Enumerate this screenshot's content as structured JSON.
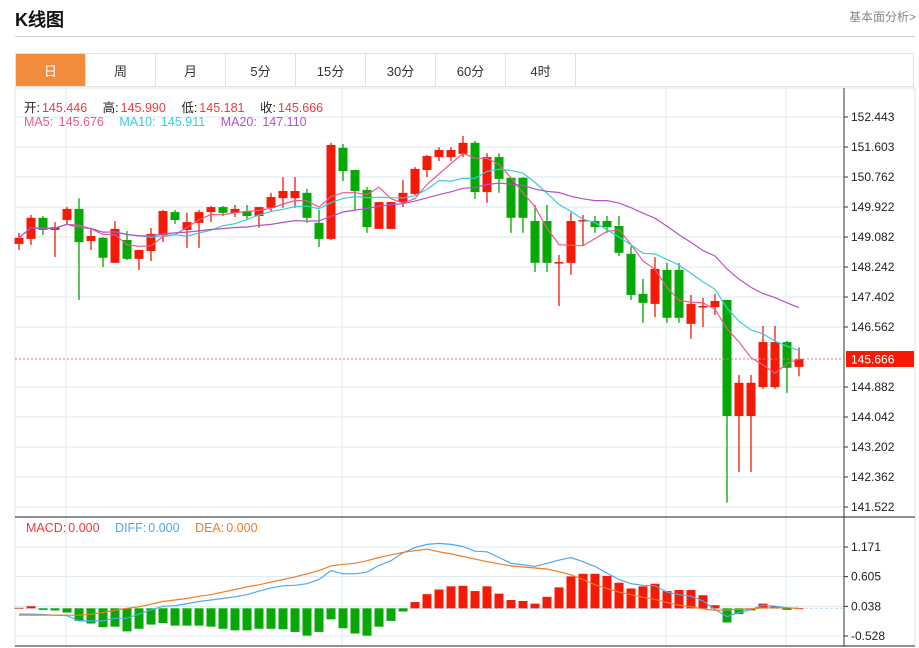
{
  "header": {
    "title": "K线图",
    "link": "基本面分析>"
  },
  "tabs": [
    {
      "label": "日",
      "active": true
    },
    {
      "label": "周"
    },
    {
      "label": "月"
    },
    {
      "label": "5分"
    },
    {
      "label": "15分"
    },
    {
      "label": "30分"
    },
    {
      "label": "60分"
    },
    {
      "label": "4时"
    }
  ],
  "ohlc_legend": {
    "open_label": "开:",
    "open": "145.446",
    "high_label": "高:",
    "high": "145.990",
    "low_label": "低:",
    "low": "145.181",
    "close_label": "收:",
    "close": "145.666"
  },
  "ma_legend": {
    "ma5_label": "MA5:",
    "ma5": "145.676",
    "ma10_label": "MA10:",
    "ma10": "145.911",
    "ma20_label": "MA20:",
    "ma20": "147.110"
  },
  "macd_legend": {
    "macd_label": "MACD:",
    "macd": "0.000",
    "diff_label": "DIFF:",
    "diff": "0.000",
    "dea_label": "DEA:",
    "dea": "0.000"
  },
  "colors": {
    "up": "#f41a05",
    "down": "#05a805",
    "ma5": "#ec5a8e",
    "ma10": "#3ccbdc",
    "ma20": "#b551c9",
    "diff": "#4ea9f2",
    "dea": "#f47b20",
    "macd_label": "#f03a3a",
    "active_tab": "#f28c3c"
  },
  "chart_data": [
    {
      "type": "candlestick",
      "current_price": "145.666",
      "y_ticks": [
        "152.443",
        "151.603",
        "150.762",
        "149.922",
        "149.082",
        "148.242",
        "147.402",
        "146.562",
        "144.882",
        "144.042",
        "143.202",
        "142.362",
        "141.522"
      ],
      "ylim": [
        141.522,
        152.443
      ],
      "grid": true,
      "ohlc": [
        [
          148.89,
          149.2,
          148.72,
          149.06
        ],
        [
          149.03,
          149.7,
          148.86,
          149.62
        ],
        [
          149.62,
          149.67,
          149.14,
          149.28
        ],
        [
          149.28,
          149.5,
          148.52,
          149.36
        ],
        [
          149.56,
          149.92,
          149.42,
          149.87
        ],
        [
          149.87,
          150.17,
          147.32,
          148.94
        ],
        [
          148.97,
          149.31,
          148.72,
          149.11
        ],
        [
          149.06,
          149.08,
          148.24,
          148.5
        ],
        [
          148.36,
          149.53,
          148.36,
          149.31
        ],
        [
          149.0,
          149.25,
          148.44,
          148.47
        ],
        [
          148.47,
          148.72,
          148.16,
          148.72
        ],
        [
          148.69,
          149.34,
          148.41,
          149.17
        ],
        [
          149.14,
          149.84,
          148.94,
          149.81
        ],
        [
          149.78,
          149.84,
          149.45,
          149.56
        ],
        [
          149.28,
          149.76,
          148.78,
          149.5
        ],
        [
          149.48,
          149.84,
          148.78,
          149.78
        ],
        [
          149.78,
          149.95,
          149.5,
          149.92
        ],
        [
          149.92,
          149.95,
          149.67,
          149.76
        ],
        [
          149.76,
          149.98,
          149.64,
          149.87
        ],
        [
          149.81,
          149.98,
          149.56,
          149.67
        ],
        [
          149.67,
          149.92,
          149.34,
          149.92
        ],
        [
          149.9,
          150.32,
          149.81,
          150.2
        ],
        [
          150.17,
          150.76,
          149.9,
          150.37
        ],
        [
          150.17,
          150.76,
          149.9,
          150.37
        ],
        [
          150.32,
          150.43,
          149.48,
          149.62
        ],
        [
          149.48,
          149.84,
          148.8,
          149.03
        ],
        [
          149.03,
          151.72,
          149.0,
          151.66
        ],
        [
          151.58,
          151.69,
          150.65,
          150.93
        ],
        [
          150.96,
          150.96,
          149.84,
          150.37
        ],
        [
          150.4,
          150.48,
          149.2,
          149.36
        ],
        [
          149.31,
          150.06,
          149.31,
          150.06
        ],
        [
          149.31,
          150.06,
          149.31,
          150.06
        ],
        [
          150.06,
          150.68,
          149.92,
          150.32
        ],
        [
          150.29,
          151.04,
          150.26,
          150.99
        ],
        [
          150.96,
          151.38,
          150.76,
          151.35
        ],
        [
          151.32,
          151.6,
          151.21,
          151.52
        ],
        [
          151.32,
          151.6,
          151.21,
          151.52
        ],
        [
          151.41,
          151.91,
          151.32,
          151.72
        ],
        [
          151.72,
          151.77,
          150.15,
          150.34
        ],
        [
          150.34,
          151.43,
          150.04,
          151.32
        ],
        [
          151.32,
          151.43,
          150.32,
          150.71
        ],
        [
          150.74,
          150.74,
          149.2,
          149.62
        ],
        [
          150.74,
          150.76,
          149.2,
          149.62
        ],
        [
          149.53,
          149.98,
          148.1,
          148.36
        ],
        [
          149.53,
          149.98,
          148.1,
          148.36
        ],
        [
          148.36,
          148.58,
          147.15,
          148.38
        ],
        [
          148.36,
          149.76,
          148.02,
          149.53
        ],
        [
          149.53,
          149.7,
          148.86,
          149.56
        ],
        [
          149.53,
          149.67,
          149.2,
          149.36
        ],
        [
          149.53,
          149.67,
          149.2,
          149.36
        ],
        [
          149.39,
          149.67,
          148.55,
          148.64
        ],
        [
          148.61,
          148.83,
          147.32,
          147.46
        ],
        [
          147.49,
          147.91,
          146.68,
          147.24
        ],
        [
          147.21,
          148.52,
          146.84,
          148.19
        ],
        [
          148.16,
          148.36,
          146.68,
          146.82
        ],
        [
          148.16,
          148.36,
          146.68,
          146.82
        ],
        [
          146.65,
          147.46,
          146.23,
          147.21
        ],
        [
          147.12,
          147.38,
          146.56,
          147.15
        ],
        [
          147.12,
          147.49,
          146.9,
          147.29
        ],
        [
          147.32,
          147.32,
          141.64,
          144.07
        ],
        [
          144.07,
          145.22,
          142.5,
          145.0
        ],
        [
          144.07,
          145.22,
          142.5,
          145.0
        ],
        [
          144.88,
          146.59,
          144.83,
          146.14
        ],
        [
          144.88,
          146.59,
          144.83,
          146.14
        ],
        [
          146.14,
          146.17,
          144.72,
          145.42
        ],
        [
          145.446,
          145.99,
          145.181,
          145.666
        ]
      ],
      "ma_periods": [
        5,
        10,
        20
      ]
    },
    {
      "type": "bar+line",
      "y_ticks": [
        "1.171",
        "0.605",
        "0.038",
        "-0.528"
      ],
      "ylim": [
        -0.528,
        1.171
      ],
      "macd": [
        0.01,
        0.04,
        -0.03,
        -0.04,
        -0.08,
        -0.24,
        -0.29,
        -0.36,
        -0.35,
        -0.44,
        -0.39,
        -0.31,
        -0.28,
        -0.33,
        -0.33,
        -0.33,
        -0.35,
        -0.39,
        -0.42,
        -0.42,
        -0.39,
        -0.39,
        -0.4,
        -0.45,
        -0.52,
        -0.45,
        -0.21,
        -0.38,
        -0.48,
        -0.52,
        -0.35,
        -0.24,
        -0.06,
        0.12,
        0.27,
        0.36,
        0.42,
        0.43,
        0.33,
        0.42,
        0.28,
        0.16,
        0.14,
        0.09,
        0.22,
        0.4,
        0.61,
        0.66,
        0.66,
        0.62,
        0.49,
        0.38,
        0.42,
        0.47,
        0.33,
        0.35,
        0.35,
        0.25,
        0.06,
        -0.27,
        -0.11,
        -0.04,
        0.09,
        0.04,
        -0.03,
        0.0
      ],
      "diff": [
        -0.11,
        -0.11,
        -0.12,
        -0.13,
        -0.14,
        -0.24,
        -0.24,
        -0.24,
        -0.19,
        -0.19,
        -0.11,
        -0.03,
        0.04,
        0.05,
        0.09,
        0.13,
        0.16,
        0.19,
        0.22,
        0.26,
        0.33,
        0.39,
        0.43,
        0.44,
        0.47,
        0.55,
        0.72,
        0.66,
        0.66,
        0.69,
        0.82,
        0.91,
        1.06,
        1.16,
        1.22,
        1.24,
        1.22,
        1.18,
        1.09,
        1.08,
        0.97,
        0.86,
        0.83,
        0.8,
        0.86,
        0.92,
        0.97,
        0.89,
        0.8,
        0.67,
        0.55,
        0.47,
        0.44,
        0.43,
        0.31,
        0.26,
        0.23,
        0.14,
        -0.02,
        -0.16,
        -0.08,
        -0.02,
        0.06,
        0.04,
        0.01,
        0.0
      ],
      "dea": [
        -0.13,
        -0.13,
        -0.13,
        -0.13,
        -0.13,
        -0.13,
        -0.11,
        -0.08,
        -0.04,
        0.0,
        0.03,
        0.08,
        0.13,
        0.16,
        0.19,
        0.23,
        0.26,
        0.31,
        0.36,
        0.41,
        0.45,
        0.5,
        0.55,
        0.6,
        0.66,
        0.72,
        0.81,
        0.84,
        0.86,
        0.91,
        0.97,
        1.02,
        1.07,
        1.1,
        1.13,
        1.08,
        1.04,
        0.99,
        0.94,
        0.89,
        0.85,
        0.81,
        0.79,
        0.77,
        0.75,
        0.7,
        0.64,
        0.55,
        0.45,
        0.38,
        0.31,
        0.26,
        0.21,
        0.17,
        0.11,
        0.06,
        0.03,
        -0.01,
        -0.04,
        -0.03,
        -0.02,
        -0.01,
        0.01,
        0.01,
        0.01,
        0.0
      ]
    }
  ]
}
